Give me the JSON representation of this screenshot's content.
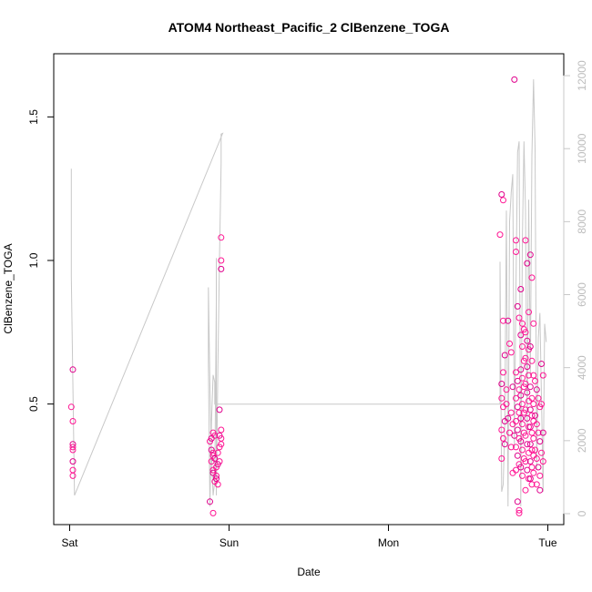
{
  "chart_data": {
    "type": "scatter",
    "title": "ATOM4 Northeast_Pacific_2 ClBenzene_TOGA",
    "xlabel": "Date",
    "ylabel": "ClBenzene_TOGA",
    "x_ticks": [
      {
        "value": 0.0,
        "label": "Sat"
      },
      {
        "value": 1.0,
        "label": "Sun"
      },
      {
        "value": 2.0,
        "label": "Mon"
      },
      {
        "value": 3.0,
        "label": "Tue"
      }
    ],
    "xlim": [
      -0.1,
      3.1
    ],
    "y_left": {
      "lim": [
        0.08,
        1.72
      ],
      "ticks": [
        0.5,
        1.0,
        1.5
      ]
    },
    "y_right": {
      "lim": [
        -300,
        12600
      ],
      "ticks": [
        0,
        2000,
        4000,
        6000,
        8000,
        10000,
        12000
      ]
    },
    "grid": false,
    "colors": {
      "points": "#ff1493",
      "points2": "#e0008c",
      "line": "#c8c8c8",
      "frame": "#000000",
      "right_axis": "#c8c8c8"
    },
    "series": [
      {
        "role": "scatter",
        "values": [
          [
            0.02,
            0.62
          ],
          [
            0.01,
            0.49
          ],
          [
            0.02,
            0.44
          ],
          [
            0.02,
            0.36
          ],
          [
            0.02,
            0.35
          ],
          [
            0.02,
            0.34
          ],
          [
            0.02,
            0.3
          ],
          [
            0.02,
            0.27
          ],
          [
            0.02,
            0.25
          ],
          [
            0.88,
            0.16
          ],
          [
            0.9,
            0.12
          ],
          [
            0.88,
            0.37
          ],
          [
            0.89,
            0.38
          ],
          [
            0.9,
            0.4
          ],
          [
            0.91,
            0.39
          ],
          [
            0.89,
            0.34
          ],
          [
            0.9,
            0.33
          ],
          [
            0.9,
            0.32
          ],
          [
            0.91,
            0.31
          ],
          [
            0.89,
            0.3
          ],
          [
            0.9,
            0.27
          ],
          [
            0.9,
            0.26
          ],
          [
            0.92,
            0.25
          ],
          [
            0.91,
            0.23
          ],
          [
            0.92,
            0.24
          ],
          [
            0.93,
            0.22
          ],
          [
            0.94,
            0.3
          ],
          [
            0.93,
            0.29
          ],
          [
            0.94,
            0.35
          ],
          [
            0.95,
            0.36
          ],
          [
            0.94,
            0.39
          ],
          [
            0.95,
            0.38
          ],
          [
            0.95,
            0.41
          ],
          [
            0.94,
            0.48
          ],
          [
            0.95,
            1.08
          ],
          [
            0.95,
            1.0
          ],
          [
            0.95,
            0.97
          ],
          [
            0.93,
            0.33
          ],
          [
            0.92,
            0.28
          ],
          [
            2.71,
            1.23
          ],
          [
            2.72,
            1.21
          ],
          [
            2.7,
            1.09
          ],
          [
            2.71,
            0.57
          ],
          [
            2.72,
            0.61
          ],
          [
            2.72,
            0.79
          ],
          [
            2.73,
            0.67
          ],
          [
            2.71,
            0.52
          ],
          [
            2.72,
            0.49
          ],
          [
            2.73,
            0.44
          ],
          [
            2.71,
            0.41
          ],
          [
            2.72,
            0.38
          ],
          [
            2.73,
            0.36
          ],
          [
            2.71,
            0.31
          ],
          [
            2.74,
            0.55
          ],
          [
            2.75,
            0.79
          ],
          [
            2.76,
            0.71
          ],
          [
            2.74,
            0.5
          ],
          [
            2.75,
            0.45
          ],
          [
            2.76,
            0.4
          ],
          [
            2.77,
            0.68
          ],
          [
            2.78,
            0.56
          ],
          [
            2.77,
            0.47
          ],
          [
            2.78,
            0.43
          ],
          [
            2.79,
            0.39
          ],
          [
            2.77,
            0.35
          ],
          [
            2.78,
            0.26
          ],
          [
            2.79,
            1.63
          ],
          [
            2.8,
            1.07
          ],
          [
            2.8,
            1.03
          ],
          [
            2.81,
            0.84
          ],
          [
            2.82,
            0.8
          ],
          [
            2.8,
            0.61
          ],
          [
            2.81,
            0.58
          ],
          [
            2.82,
            0.55
          ],
          [
            2.8,
            0.52
          ],
          [
            2.81,
            0.49
          ],
          [
            2.82,
            0.47
          ],
          [
            2.8,
            0.44
          ],
          [
            2.81,
            0.41
          ],
          [
            2.82,
            0.38
          ],
          [
            2.8,
            0.35
          ],
          [
            2.81,
            0.32
          ],
          [
            2.82,
            0.29
          ],
          [
            2.8,
            0.27
          ],
          [
            2.81,
            0.16
          ],
          [
            2.82,
            0.13
          ],
          [
            2.82,
            0.12
          ],
          [
            2.83,
            0.9
          ],
          [
            2.84,
            0.78
          ],
          [
            2.85,
            0.76
          ],
          [
            2.83,
            0.74
          ],
          [
            2.84,
            0.7
          ],
          [
            2.85,
            0.65
          ],
          [
            2.83,
            0.62
          ],
          [
            2.84,
            0.59
          ],
          [
            2.85,
            0.56
          ],
          [
            2.83,
            0.53
          ],
          [
            2.84,
            0.5
          ],
          [
            2.85,
            0.47
          ],
          [
            2.83,
            0.45
          ],
          [
            2.84,
            0.43
          ],
          [
            2.85,
            0.4
          ],
          [
            2.83,
            0.37
          ],
          [
            2.84,
            0.34
          ],
          [
            2.85,
            0.31
          ],
          [
            2.83,
            0.28
          ],
          [
            2.84,
            0.25
          ],
          [
            2.86,
            1.07
          ],
          [
            2.87,
            0.99
          ],
          [
            2.88,
            0.82
          ],
          [
            2.86,
            0.75
          ],
          [
            2.87,
            0.72
          ],
          [
            2.88,
            0.69
          ],
          [
            2.86,
            0.66
          ],
          [
            2.87,
            0.63
          ],
          [
            2.88,
            0.6
          ],
          [
            2.86,
            0.57
          ],
          [
            2.87,
            0.54
          ],
          [
            2.88,
            0.51
          ],
          [
            2.86,
            0.48
          ],
          [
            2.87,
            0.45
          ],
          [
            2.88,
            0.42
          ],
          [
            2.86,
            0.39
          ],
          [
            2.87,
            0.36
          ],
          [
            2.88,
            0.33
          ],
          [
            2.86,
            0.3
          ],
          [
            2.87,
            0.27
          ],
          [
            2.88,
            0.24
          ],
          [
            2.86,
            0.2
          ],
          [
            2.89,
            1.02
          ],
          [
            2.9,
            0.94
          ],
          [
            2.91,
            0.78
          ],
          [
            2.89,
            0.7
          ],
          [
            2.9,
            0.65
          ],
          [
            2.91,
            0.6
          ],
          [
            2.89,
            0.56
          ],
          [
            2.9,
            0.52
          ],
          [
            2.91,
            0.5
          ],
          [
            2.89,
            0.48
          ],
          [
            2.9,
            0.46
          ],
          [
            2.91,
            0.44
          ],
          [
            2.89,
            0.42
          ],
          [
            2.9,
            0.4
          ],
          [
            2.91,
            0.38
          ],
          [
            2.89,
            0.36
          ],
          [
            2.9,
            0.34
          ],
          [
            2.91,
            0.32
          ],
          [
            2.89,
            0.3
          ],
          [
            2.9,
            0.28
          ],
          [
            2.91,
            0.26
          ],
          [
            2.89,
            0.24
          ],
          [
            2.9,
            0.22
          ],
          [
            2.92,
            0.58
          ],
          [
            2.93,
            0.55
          ],
          [
            2.94,
            0.52
          ],
          [
            2.95,
            0.49
          ],
          [
            2.92,
            0.46
          ],
          [
            2.93,
            0.43
          ],
          [
            2.94,
            0.4
          ],
          [
            2.95,
            0.37
          ],
          [
            2.92,
            0.34
          ],
          [
            2.93,
            0.31
          ],
          [
            2.94,
            0.28
          ],
          [
            2.95,
            0.25
          ],
          [
            2.93,
            0.22
          ],
          [
            2.96,
            0.64
          ],
          [
            2.97,
            0.6
          ],
          [
            2.96,
            0.5
          ],
          [
            2.97,
            0.4
          ],
          [
            2.96,
            0.33
          ],
          [
            2.97,
            0.3
          ],
          [
            2.95,
            0.2
          ]
        ]
      },
      {
        "role": "line",
        "axis": "right",
        "values": [
          [
            0.01,
            9450
          ],
          [
            0.01,
            6500
          ],
          [
            0.03,
            500
          ],
          [
            0.96,
            10420
          ],
          [
            0.95,
            10400
          ],
          [
            0.95,
            9600
          ],
          [
            0.94,
            7000
          ],
          [
            0.93,
            4000
          ],
          [
            0.92,
            500
          ],
          [
            0.92,
            7000
          ],
          [
            0.92,
            5800
          ],
          [
            0.91,
            900
          ],
          [
            0.9,
            500
          ],
          [
            0.89,
            1600
          ],
          [
            0.88,
            3500
          ],
          [
            0.87,
            6200
          ],
          [
            0.87,
            4100
          ],
          [
            0.88,
            200
          ],
          [
            0.89,
            2500
          ],
          [
            0.9,
            3800
          ],
          [
            0.91,
            3600
          ],
          [
            0.91,
            3000
          ],
          [
            2.7,
            3000
          ],
          [
            2.7,
            6900
          ],
          [
            2.71,
            600
          ],
          [
            2.72,
            800
          ],
          [
            2.73,
            2500
          ],
          [
            2.74,
            8300
          ],
          [
            2.75,
            200
          ],
          [
            2.76,
            8000
          ],
          [
            2.77,
            8800
          ],
          [
            2.78,
            9300
          ],
          [
            2.79,
            1800
          ],
          [
            2.8,
            6200
          ],
          [
            2.81,
            9900
          ],
          [
            2.82,
            10200
          ],
          [
            2.83,
            200
          ],
          [
            2.84,
            7400
          ],
          [
            2.85,
            10200
          ],
          [
            2.86,
            8300
          ],
          [
            2.87,
            2200
          ],
          [
            2.88,
            8600
          ],
          [
            2.89,
            3800
          ],
          [
            2.9,
            9800
          ],
          [
            2.91,
            11900
          ],
          [
            2.92,
            10000
          ],
          [
            2.93,
            1200
          ],
          [
            2.94,
            4800
          ],
          [
            2.95,
            5500
          ],
          [
            2.96,
            3200
          ],
          [
            2.97,
            600
          ],
          [
            2.98,
            5200
          ],
          [
            2.99,
            4700
          ]
        ]
      }
    ]
  }
}
